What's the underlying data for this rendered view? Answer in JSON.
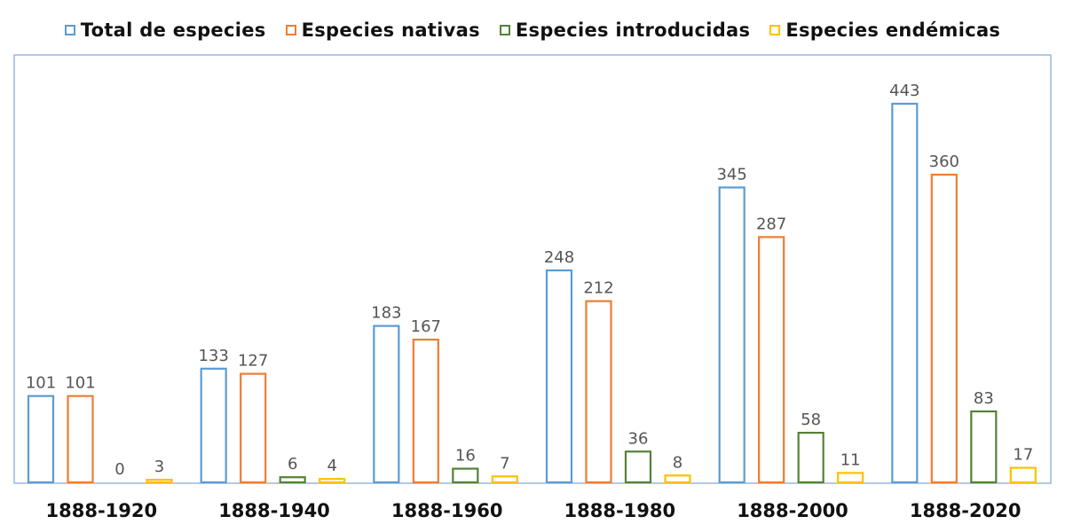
{
  "legend": [
    {
      "name": "Total de especies",
      "color": "#5b9bd5"
    },
    {
      "name": "Especies nativas",
      "color": "#ed7d31"
    },
    {
      "name": "Especies introducidas",
      "color": "#548235"
    },
    {
      "name": "Especies endémicas",
      "color": "#ffc000"
    }
  ],
  "chart_data": {
    "type": "bar",
    "categories": [
      "1888-1920",
      "1888-1940",
      "1888-1960",
      "1888-1980",
      "1888-2000",
      "1888-2020"
    ],
    "series": [
      {
        "name": "Total de especies",
        "color": "#5b9bd5",
        "values": [
          101,
          133,
          183,
          248,
          345,
          443
        ]
      },
      {
        "name": "Especies nativas",
        "color": "#ed7d31",
        "values": [
          101,
          127,
          167,
          212,
          287,
          360
        ]
      },
      {
        "name": "Especies introducidas",
        "color": "#548235",
        "values": [
          0,
          6,
          16,
          36,
          58,
          83
        ]
      },
      {
        "name": "Especies endémicas",
        "color": "#ffc000",
        "values": [
          3,
          4,
          7,
          8,
          11,
          17
        ]
      }
    ],
    "ylim": [
      0,
      443
    ],
    "legend_position": "top",
    "grid": false,
    "data_labels": true,
    "frame_color": "#7fa7d9"
  }
}
